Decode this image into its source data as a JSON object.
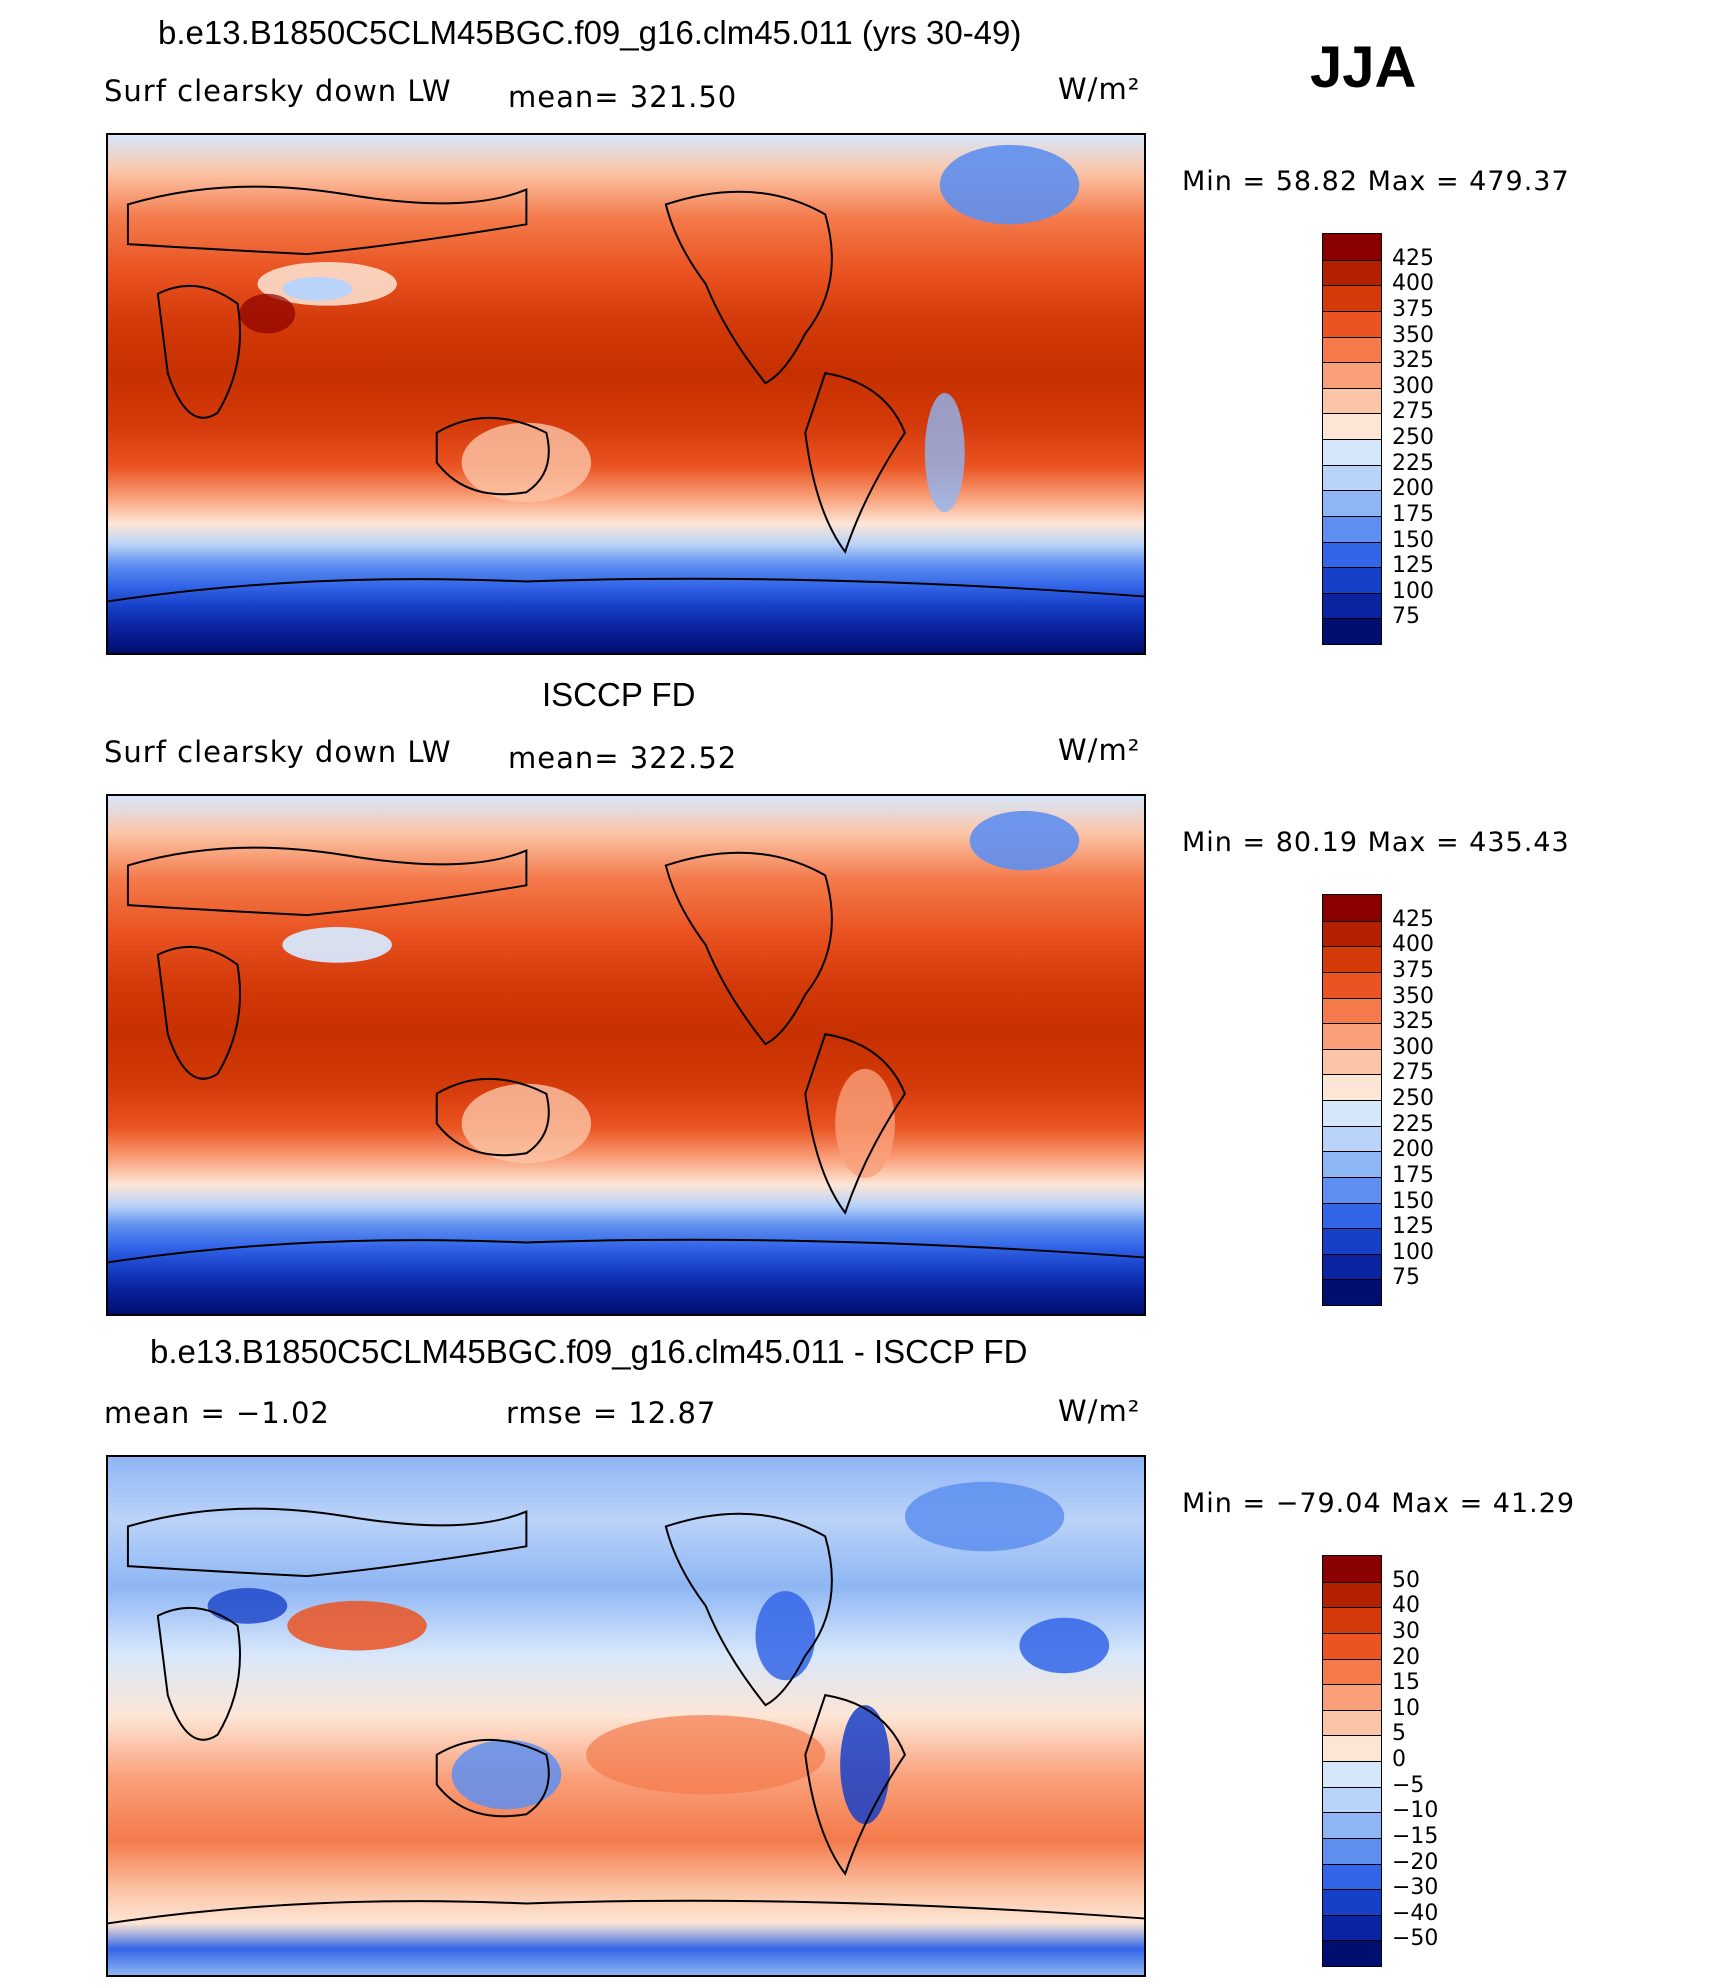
{
  "season": "JJA",
  "panels": [
    {
      "title": "b.e13.B1850C5CLM45BGC.f09_g16.clm45.011 (yrs 30-49)",
      "left_label": "Surf clearsky down LW",
      "stat_label": "mean= 321.50",
      "units": "W/m²",
      "minmax": "Min =   58.82 Max = 479.37",
      "colorbar": {
        "labels": [
          "425",
          "400",
          "375",
          "350",
          "325",
          "300",
          "275",
          "250",
          "225",
          "200",
          "175",
          "150",
          "125",
          "100",
          "75"
        ],
        "colors": [
          "#8b0000",
          "#b22000",
          "#d43a0a",
          "#ea5422",
          "#f47a4b",
          "#f9a07a",
          "#fbc6a8",
          "#fde6d6",
          "#d7e7fb",
          "#bad3f8",
          "#8fb6f4",
          "#5e8ff0",
          "#3365e8",
          "#1740c8",
          "#0a23a0",
          "#000e70"
        ]
      },
      "color_scheme": "absolute"
    },
    {
      "title": "ISCCP FD",
      "left_label": "Surf clearsky down LW",
      "stat_label": "mean= 322.52",
      "units": "W/m²",
      "minmax": "Min =   80.19 Max = 435.43",
      "colorbar": {
        "labels": [
          "425",
          "400",
          "375",
          "350",
          "325",
          "300",
          "275",
          "250",
          "225",
          "200",
          "175",
          "150",
          "125",
          "100",
          "75"
        ],
        "colors": [
          "#8b0000",
          "#b22000",
          "#d43a0a",
          "#ea5422",
          "#f47a4b",
          "#f9a07a",
          "#fbc6a8",
          "#fde6d6",
          "#d7e7fb",
          "#bad3f8",
          "#8fb6f4",
          "#5e8ff0",
          "#3365e8",
          "#1740c8",
          "#0a23a0",
          "#000e70"
        ]
      },
      "color_scheme": "absolute"
    },
    {
      "title": "b.e13.B1850C5CLM45BGC.f09_g16.clm45.011 - ISCCP FD",
      "left_label": "mean =   −1.02",
      "stat_label": "rmse =   12.87",
      "units": "W/m²",
      "minmax": "Min = −79.04 Max =   41.29",
      "colorbar": {
        "labels": [
          "50",
          "40",
          "30",
          "20",
          "15",
          "10",
          "5",
          "0",
          "−5",
          "−10",
          "−15",
          "−20",
          "−30",
          "−40",
          "−50"
        ],
        "colors": [
          "#8b0000",
          "#b22000",
          "#d43a0a",
          "#ea5422",
          "#f47a4b",
          "#f9a07a",
          "#fbc6a8",
          "#fde6d6",
          "#d7e7fb",
          "#bad3f8",
          "#8fb6f4",
          "#5e8ff0",
          "#3365e8",
          "#1740c8",
          "#0a23a0",
          "#000e70"
        ]
      },
      "color_scheme": "difference"
    }
  ]
}
